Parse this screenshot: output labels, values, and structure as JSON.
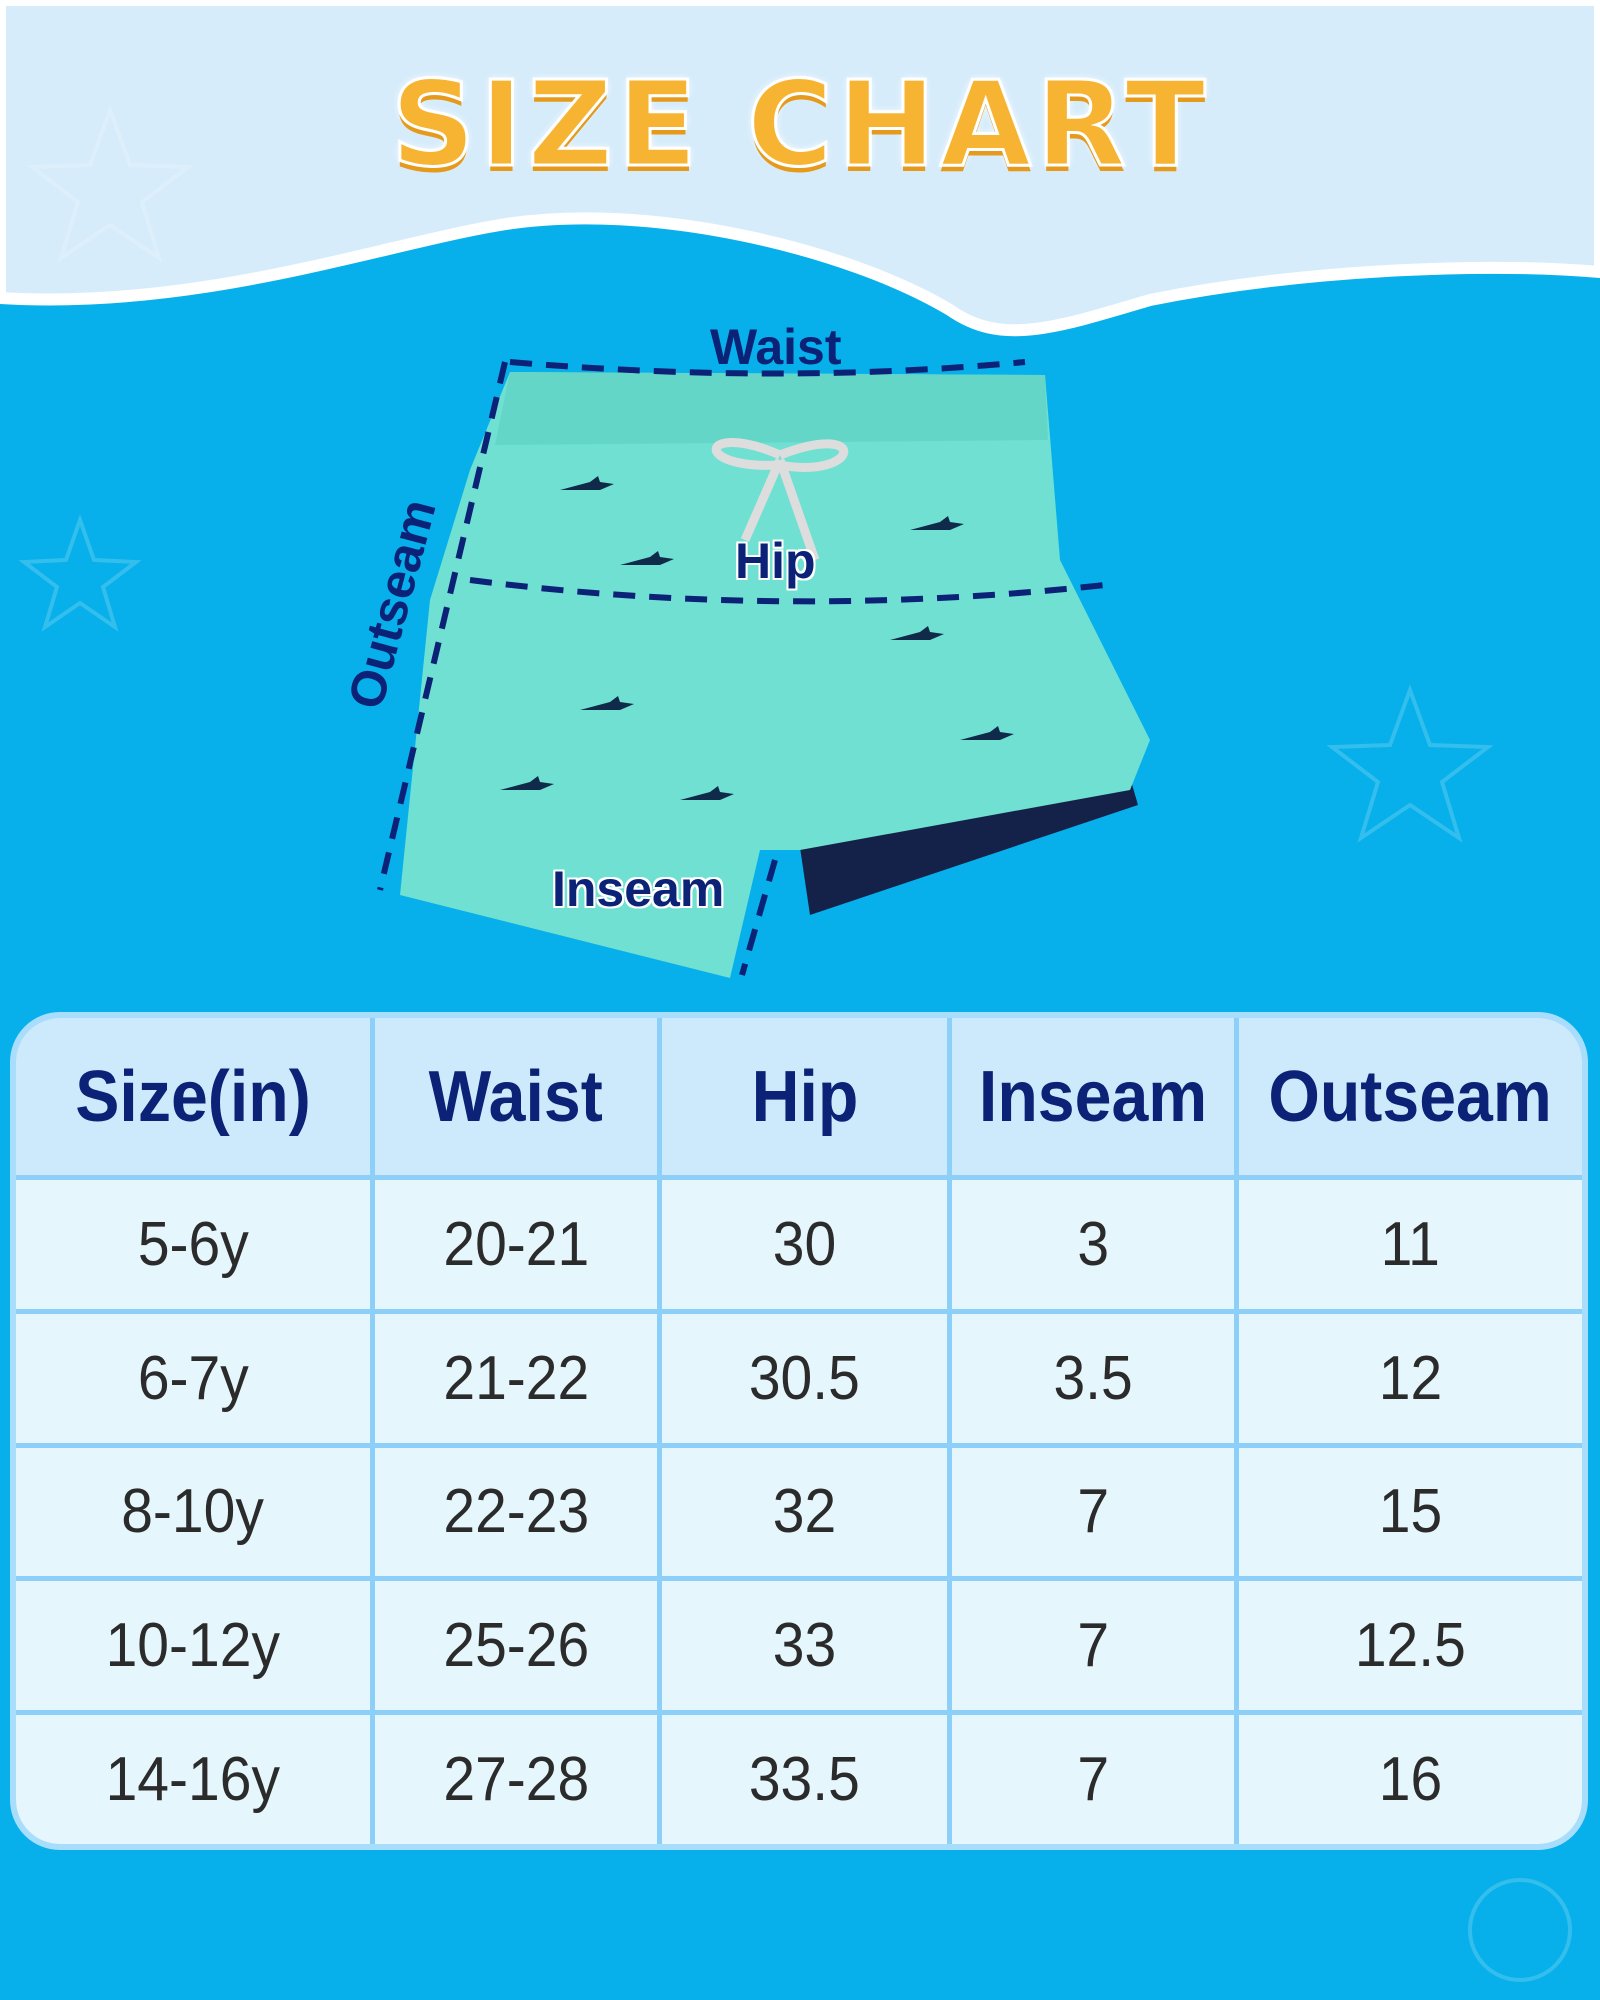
{
  "title": "SIZE CHART",
  "measure_labels": {
    "waist": "Waist",
    "hip": "Hip",
    "inseam": "Inseam",
    "outseam": "Outseam"
  },
  "colors": {
    "background": "#07b0ea",
    "top_band": "#d6ecfb",
    "title": "#f6b432",
    "label": "#0b2277",
    "shorts": "#6fe0d2",
    "liner": "#14224a"
  },
  "table": {
    "headers": [
      "Size(in)",
      "Waist",
      "Hip",
      "Inseam",
      "Outseam"
    ],
    "rows": [
      [
        "5-6y",
        "20-21",
        "30",
        "3",
        "11"
      ],
      [
        "6-7y",
        "21-22",
        "30.5",
        "3.5",
        "12"
      ],
      [
        "8-10y",
        "22-23",
        "32",
        "7",
        "15"
      ],
      [
        "10-12y",
        "25-26",
        "33",
        "7",
        "12.5"
      ],
      [
        "14-16y",
        "27-28",
        "33.5",
        "7",
        "16"
      ]
    ]
  }
}
